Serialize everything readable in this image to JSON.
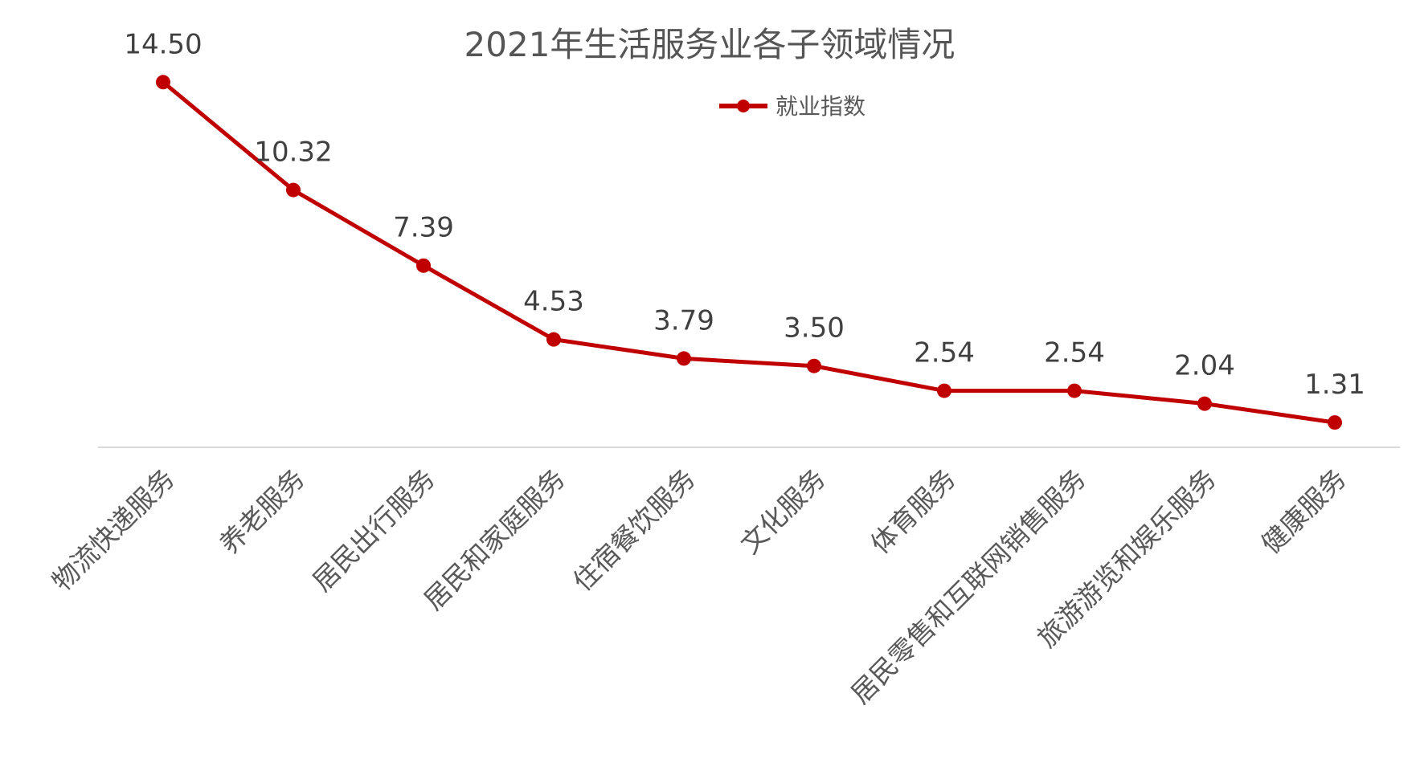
{
  "chart_data": {
    "type": "line",
    "title": "2021年生活服务业各子领域情况",
    "categories": [
      "物流快递服务",
      "养老服务",
      "居民出行服务",
      "居民和家庭服务",
      "住宿餐饮服务",
      "文化服务",
      "体育服务",
      "居民零售和互联网销售服务",
      "旅游游览和娱乐服务",
      "健康服务"
    ],
    "series": [
      {
        "name": "就业指数",
        "values": [
          14.5,
          10.32,
          7.39,
          4.53,
          3.79,
          3.5,
          2.54,
          2.54,
          2.04,
          1.31
        ],
        "color": "#c00000"
      }
    ],
    "data_labels": [
      "14.50",
      "10.32",
      "7.39",
      "4.53",
      "3.79",
      "3.50",
      "2.54",
      "2.54",
      "2.04",
      "1.31"
    ],
    "legend_position": "top-center",
    "grid": false,
    "xlabel": "",
    "ylabel": ""
  }
}
